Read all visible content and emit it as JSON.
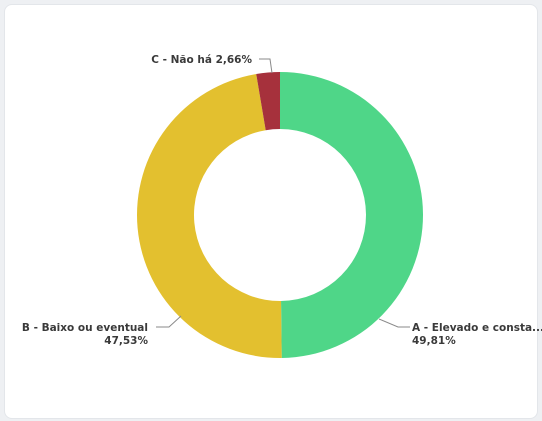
{
  "chart_data": {
    "type": "pie",
    "donut": true,
    "slices": [
      {
        "label": "A - Elevado e consta...",
        "value_label": "49,81%",
        "value": 49.81,
        "color": "#4fd688"
      },
      {
        "label": "B - Baixo ou eventual",
        "value_label": "47,53%",
        "value": 47.53,
        "color": "#e3c02f"
      },
      {
        "label": "C - Não há",
        "value_label": "2,66%",
        "value": 2.66,
        "color": "#a6313c"
      }
    ],
    "labels": {
      "a_name": "A - Elevado e consta...",
      "a_value": "49,81%",
      "b_name": "B - Baixo ou eventual",
      "b_value": "47,53%",
      "c_combined": "C - Não há 2,66%"
    },
    "title": "",
    "legend": "none"
  }
}
